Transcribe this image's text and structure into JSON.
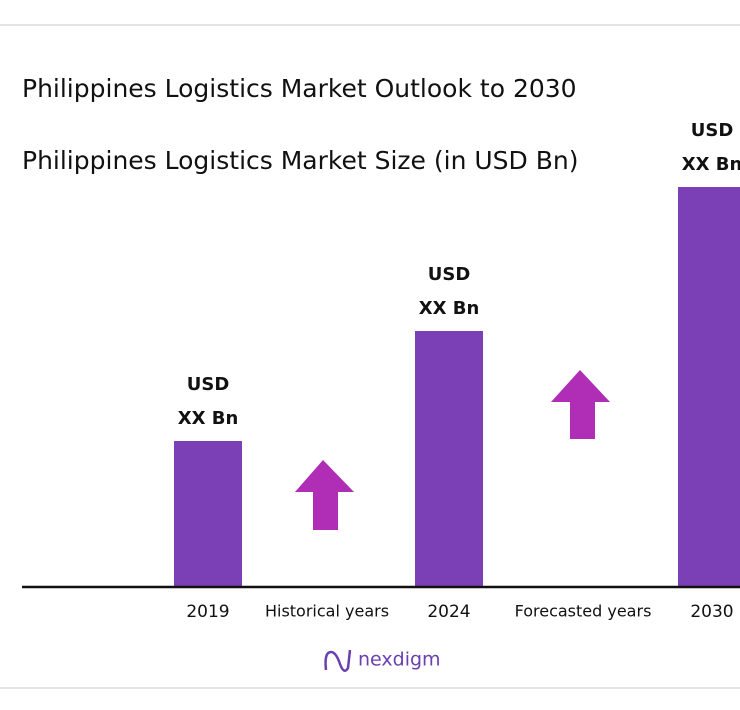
{
  "chart_data": {
    "type": "bar",
    "title": "Philippines Logistics Market Outlook to 2030",
    "subtitle": "Philippines Logistics Market Size (in USD Bn)",
    "categories": [
      "2019",
      "2024",
      "2030"
    ],
    "values": [
      146,
      256,
      400
    ],
    "value_labels": [
      [
        "USD",
        "XX Bn"
      ],
      [
        "USD",
        "XX Bn"
      ],
      [
        "USD",
        "XX Bn"
      ]
    ],
    "color": "#7b40b6",
    "ylim": [
      0,
      400
    ],
    "annotations": [
      "Historical years",
      "Forecasted years"
    ],
    "logo": "nexdigm"
  }
}
